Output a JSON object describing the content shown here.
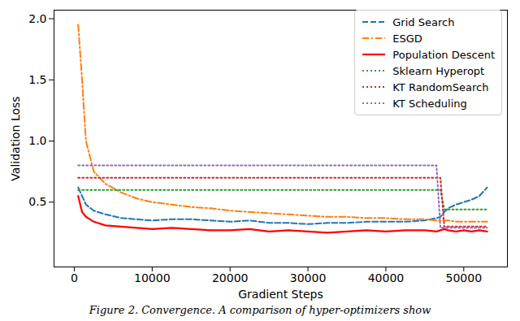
{
  "chart_data": {
    "type": "line",
    "caption": "Figure 2. Convergence. A comparison of hyper-optimizers show",
    "x_label": "Gradient Steps",
    "y_label": "Validation Loss",
    "x": [
      500,
      1000,
      1500,
      2500,
      4000,
      6000,
      8000,
      10000,
      12500,
      15000,
      17500,
      20000,
      22500,
      25000,
      27500,
      30000,
      32500,
      35000,
      37500,
      40000,
      42500,
      45000,
      46500,
      47000,
      47500,
      48000,
      49000,
      50000,
      51000,
      52000,
      53000
    ],
    "series": [
      {
        "name": "Grid Search",
        "color": "#1f77b4",
        "line_style": "dashed",
        "values": [
          0.62,
          0.55,
          0.48,
          0.43,
          0.4,
          0.37,
          0.36,
          0.35,
          0.36,
          0.36,
          0.35,
          0.34,
          0.35,
          0.33,
          0.33,
          0.32,
          0.33,
          0.33,
          0.34,
          0.34,
          0.34,
          0.35,
          0.37,
          0.38,
          0.42,
          0.45,
          0.48,
          0.5,
          0.52,
          0.55,
          0.62
        ]
      },
      {
        "name": "ESGD",
        "color": "#ff7f0e",
        "line_style": "dashdot",
        "values": [
          1.95,
          1.5,
          1.0,
          0.75,
          0.65,
          0.58,
          0.53,
          0.5,
          0.48,
          0.46,
          0.45,
          0.43,
          0.42,
          0.41,
          0.4,
          0.39,
          0.38,
          0.38,
          0.37,
          0.37,
          0.36,
          0.36,
          0.35,
          0.35,
          0.35,
          0.35,
          0.34,
          0.34,
          0.34,
          0.34,
          0.34
        ]
      },
      {
        "name": "Population Descent",
        "color": "#ff0000",
        "line_style": "solid",
        "values": [
          0.55,
          0.42,
          0.38,
          0.34,
          0.31,
          0.3,
          0.29,
          0.28,
          0.29,
          0.28,
          0.27,
          0.27,
          0.28,
          0.26,
          0.27,
          0.26,
          0.25,
          0.26,
          0.27,
          0.26,
          0.27,
          0.27,
          0.26,
          0.27,
          0.28,
          0.27,
          0.26,
          0.27,
          0.26,
          0.27,
          0.26
        ]
      },
      {
        "name": "Sklearn Hyperopt",
        "color": "#2ca02c",
        "line_style": "dotted",
        "values": [
          0.6,
          0.6,
          0.6,
          0.6,
          0.6,
          0.6,
          0.6,
          0.6,
          0.6,
          0.6,
          0.6,
          0.6,
          0.6,
          0.6,
          0.6,
          0.6,
          0.6,
          0.6,
          0.6,
          0.6,
          0.6,
          0.6,
          0.6,
          0.6,
          0.44,
          0.44,
          0.44,
          0.44,
          0.44,
          0.44,
          0.44
        ]
      },
      {
        "name": "KT RandomSearch",
        "color": "#d62728",
        "line_style": "dotted",
        "values": [
          0.7,
          0.7,
          0.7,
          0.7,
          0.7,
          0.7,
          0.7,
          0.7,
          0.7,
          0.7,
          0.7,
          0.7,
          0.7,
          0.7,
          0.7,
          0.7,
          0.7,
          0.7,
          0.7,
          0.7,
          0.7,
          0.7,
          0.7,
          0.7,
          0.3,
          0.3,
          0.3,
          0.3,
          0.3,
          0.3,
          0.3
        ]
      },
      {
        "name": "KT Scheduling",
        "color": "#9467bd",
        "line_style": "dotted",
        "values": [
          0.8,
          0.8,
          0.8,
          0.8,
          0.8,
          0.8,
          0.8,
          0.8,
          0.8,
          0.8,
          0.8,
          0.8,
          0.8,
          0.8,
          0.8,
          0.8,
          0.8,
          0.8,
          0.8,
          0.8,
          0.8,
          0.8,
          0.8,
          0.29,
          0.29,
          0.29,
          0.29,
          0.29,
          0.29,
          0.29,
          0.29
        ]
      }
    ],
    "xlim": [
      -2600,
      55600
    ],
    "xticks": [
      0,
      10000,
      20000,
      30000,
      40000,
      50000
    ],
    "ylim": [
      -0.03,
      2.07
    ],
    "yticks": [
      {
        "value": 0.5,
        "label": "0.5"
      },
      {
        "value": 1.0,
        "label": "1.0"
      },
      {
        "value": 1.5,
        "label": "1.5"
      },
      {
        "value": 2.0,
        "label": "2.0"
      }
    ],
    "legend": "upper right",
    "grid": false
  }
}
